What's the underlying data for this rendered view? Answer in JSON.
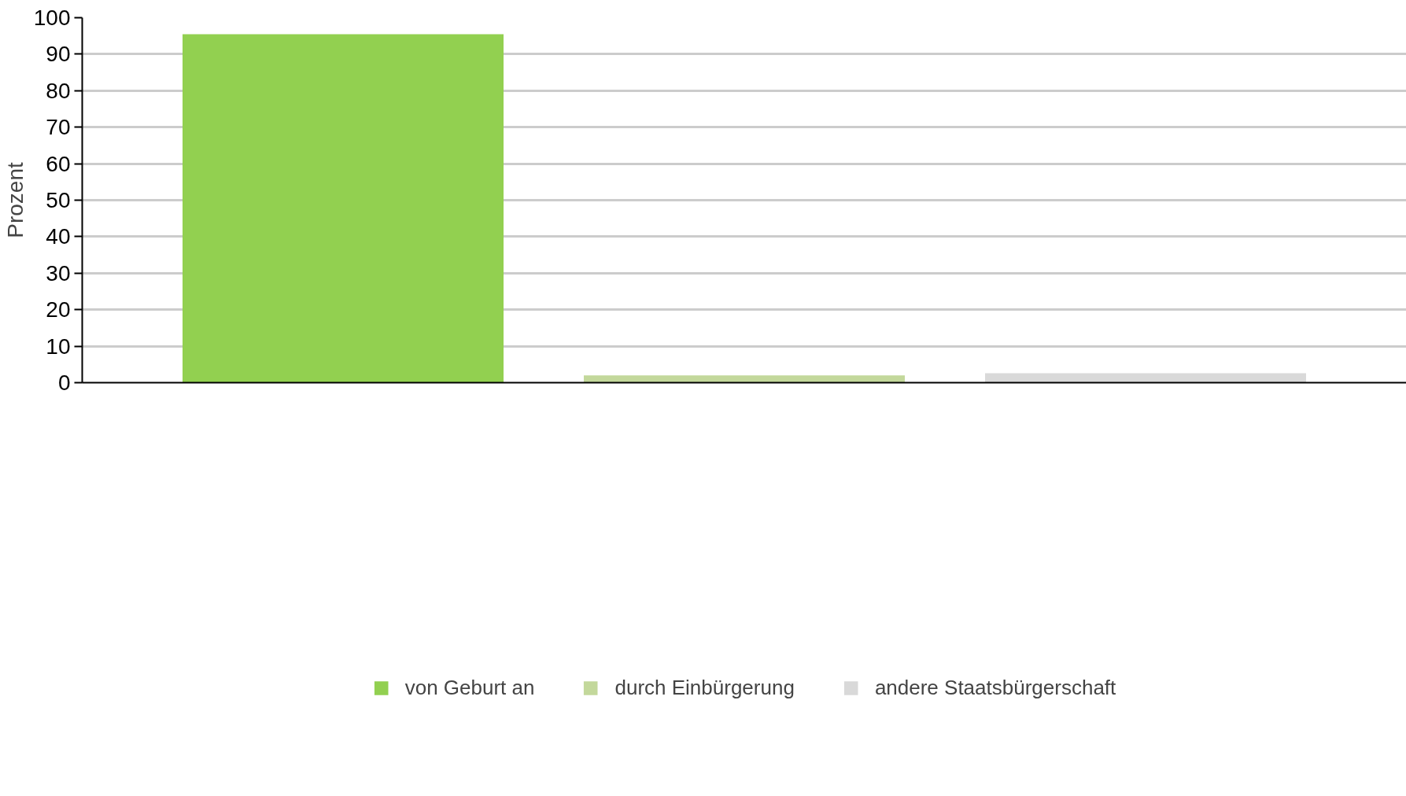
{
  "chart_data": {
    "type": "bar",
    "ylabel": "Prozent",
    "categories": [
      null,
      null,
      null
    ],
    "series": [
      {
        "name": "von Geburt an",
        "color": "#92d050",
        "values": [
          95.5,
          null,
          null
        ]
      },
      {
        "name": "durch Einbürgerung",
        "color": "#c3d89b",
        "values": [
          null,
          2.0,
          null
        ]
      },
      {
        "name": "andere Staatsbürgerschaft",
        "color": "#d9d9d9",
        "values": [
          null,
          null,
          2.6
        ]
      }
    ],
    "ylim": [
      0,
      100
    ],
    "yticks": [
      0,
      10,
      20,
      30,
      40,
      50,
      60,
      70,
      80,
      90,
      100
    ],
    "grid": "y",
    "legend": "bottom",
    "tick_labels": "y"
  }
}
